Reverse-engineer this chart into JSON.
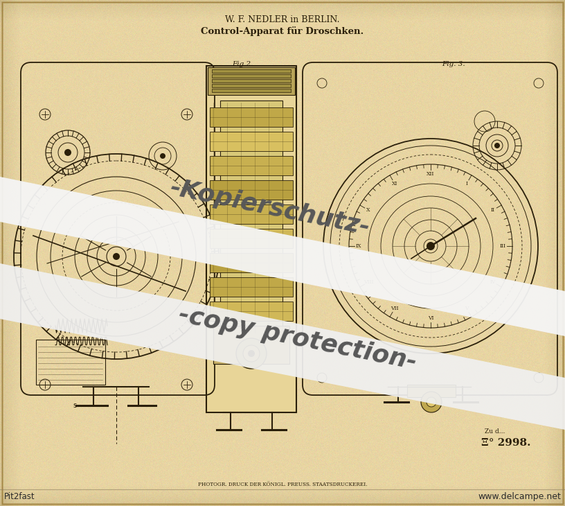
{
  "bg_color": "#e8d5a3",
  "parchment_light": "#f0e0b0",
  "parchment_mid": "#e0cc90",
  "title_line1": "W. F. NEDLER in BERLIN.",
  "title_line2": "Control-Apparat für Droschken.",
  "fig2_label": "Fig.2.",
  "fig3_label": "Fig. 3.",
  "bottom_text1": "PHOTOGR. DRUCK DER KÖNIGL. PREUSS. STAATSDRUCKEREI.",
  "bottom_right1": "Zu d...",
  "bottom_right2": "Ξ° 2998.",
  "watermark_line1": "-Kopierschutz-",
  "watermark_line2": "-copy protection-",
  "source_text": "Pit2fast",
  "source_url": "www.delcampe.net",
  "ink": "#2a1f0a",
  "ink_light": "#4a3a1a",
  "watermark_white": "#f8f8f8",
  "watermark_alpha": 0.93,
  "watermark_text_color": "#666666",
  "border_color": "#c8a860",
  "fig_width": 816,
  "fig_height": 730
}
